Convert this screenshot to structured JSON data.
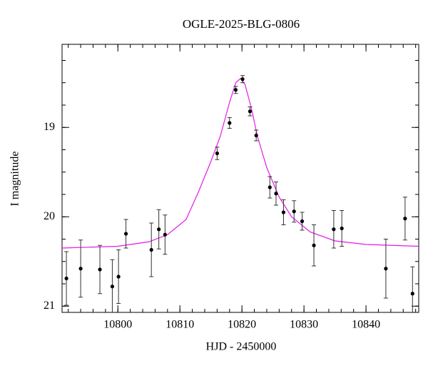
{
  "chart_data": {
    "type": "scatter",
    "title": "OGLE-2025-BLG-0806",
    "x_label": "HJD - 2450000",
    "y_label": "I magnitude",
    "xlim": [
      10791,
      10848.5
    ],
    "ylim": [
      18.07,
      21.07
    ],
    "y_inverted": true,
    "xticks": [
      10800,
      10810,
      10820,
      10830,
      10840
    ],
    "yticks": [
      19,
      20,
      21
    ],
    "x_minor_step": 2,
    "y_minor_step": 0.25,
    "points": {
      "color": "#000000",
      "x": [
        10791.7,
        10794.0,
        10797.1,
        10799.1,
        10800.1,
        10801.3,
        10805.4,
        10806.6,
        10807.6,
        10816.0,
        10818.0,
        10819.0,
        10820.1,
        10821.3,
        10822.3,
        10824.5,
        10825.5,
        10826.7,
        10828.4,
        10829.7,
        10831.6,
        10834.8,
        10836.1,
        10843.2,
        10846.3,
        10847.5
      ],
      "values": [
        20.69,
        20.58,
        20.59,
        20.78,
        20.67,
        20.19,
        20.37,
        20.14,
        20.2,
        19.29,
        18.95,
        18.58,
        18.46,
        18.82,
        19.09,
        19.67,
        19.74,
        19.95,
        19.94,
        20.05,
        20.32,
        20.14,
        20.13,
        20.58,
        20.02,
        20.86
      ],
      "errors": [
        0.3,
        0.32,
        0.27,
        0.3,
        0.3,
        0.16,
        0.3,
        0.22,
        0.22,
        0.07,
        0.06,
        0.04,
        0.04,
        0.05,
        0.06,
        0.12,
        0.13,
        0.14,
        0.12,
        0.1,
        0.23,
        0.21,
        0.2,
        0.33,
        0.24,
        0.3
      ]
    },
    "model": {
      "color": "#e619e6",
      "x": [
        10791,
        10800,
        10805,
        10808,
        10811,
        10813,
        10815,
        10816.5,
        10818,
        10819,
        10819.8,
        10820.5,
        10821.5,
        10822.5,
        10824,
        10826,
        10828,
        10831,
        10835,
        10840,
        10848.5
      ],
      "values": [
        20.35,
        20.33,
        20.28,
        20.2,
        20.03,
        19.72,
        19.38,
        19.1,
        18.72,
        18.5,
        18.45,
        18.52,
        18.78,
        19.1,
        19.45,
        19.78,
        20.0,
        20.17,
        20.27,
        20.31,
        20.33
      ]
    }
  }
}
